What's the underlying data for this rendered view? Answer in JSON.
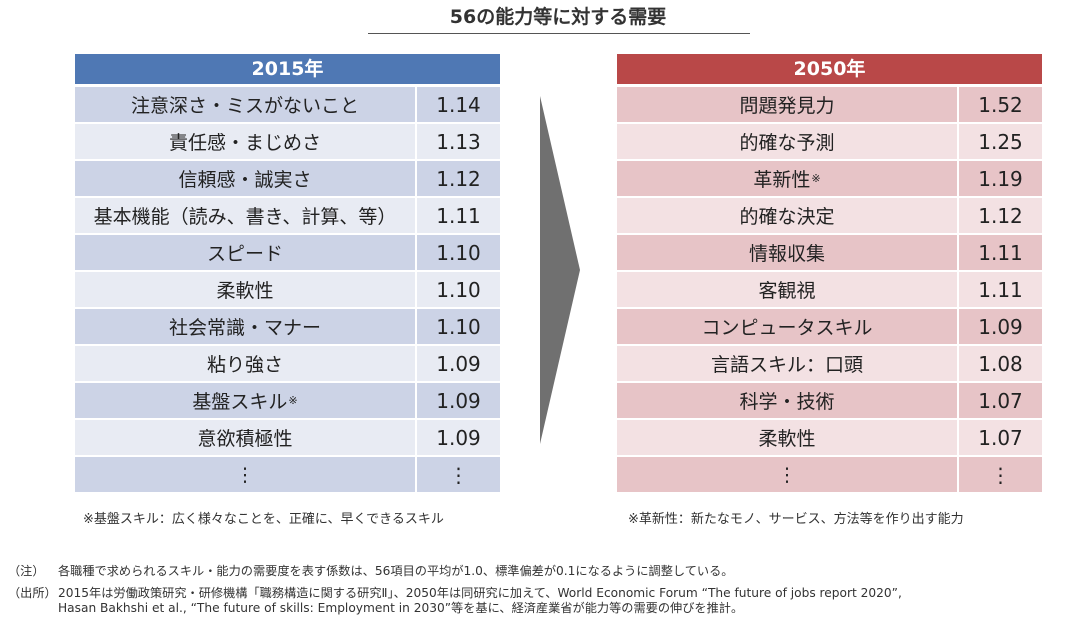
{
  "title": "56の能力等に対する需要",
  "left_panel": {
    "header": "2015年",
    "rows": [
      {
        "label": "注意深さ・ミスがないこと",
        "value": "1.14"
      },
      {
        "label": "責任感・まじめさ",
        "value": "1.13"
      },
      {
        "label": "信頼感・誠実さ",
        "value": "1.12"
      },
      {
        "label": "基本機能（読み、書き、計算、等）",
        "value": "1.11"
      },
      {
        "label": "スピード",
        "value": "1.10"
      },
      {
        "label": "柔軟性",
        "value": "1.10"
      },
      {
        "label": "社会常識・マナー",
        "value": "1.10"
      },
      {
        "label": "粘り強さ",
        "value": "1.09"
      },
      {
        "label": "基盤スキル",
        "mark": "※",
        "value": "1.09"
      },
      {
        "label": "意欲積極性",
        "value": "1.09"
      },
      {
        "label": "⋮",
        "value": "⋮"
      }
    ],
    "note": "※基盤スキル：広く様々なことを、正確に、早くできるスキル"
  },
  "right_panel": {
    "header": "2050年",
    "rows": [
      {
        "label": "問題発見力",
        "value": "1.52"
      },
      {
        "label": "的確な予測",
        "value": "1.25"
      },
      {
        "label": "革新性",
        "mark": "※",
        "value": "1.19"
      },
      {
        "label": "的確な決定",
        "value": "1.12"
      },
      {
        "label": "情報収集",
        "value": "1.11"
      },
      {
        "label": "客観視",
        "value": "1.11"
      },
      {
        "label": "コンピュータスキル",
        "value": "1.09"
      },
      {
        "label": "言語スキル：口頭",
        "value": "1.08"
      },
      {
        "label": "科学・技術",
        "value": "1.07"
      },
      {
        "label": "柔軟性",
        "value": "1.07"
      },
      {
        "label": "⋮",
        "value": "⋮"
      }
    ],
    "note": "※革新性：新たなモノ、サービス、方法等を作り出す能力"
  },
  "footnotes": {
    "note_label": "（注）",
    "note_text": "各職種で求められるスキル・能力の需要度を表す係数は、56項目の平均が1.0、標準偏差が0.1になるように調整している。",
    "source_label": "（出所）",
    "source_text_1": "2015年は労働政策研究・研修機構「職務構造に関する研究Ⅱ」、2050年は同研究に加えて、World Economic Forum “The future of jobs report 2020”,",
    "source_text_2": "Hasan Bakhshi et al., “The future of skills: Employment in 2030”等を基に、経済産業省が能力等の需要の伸びを推計。"
  },
  "colors": {
    "left_header": "#4f78b4",
    "right_header": "#b94848",
    "arrow": "#707070"
  }
}
